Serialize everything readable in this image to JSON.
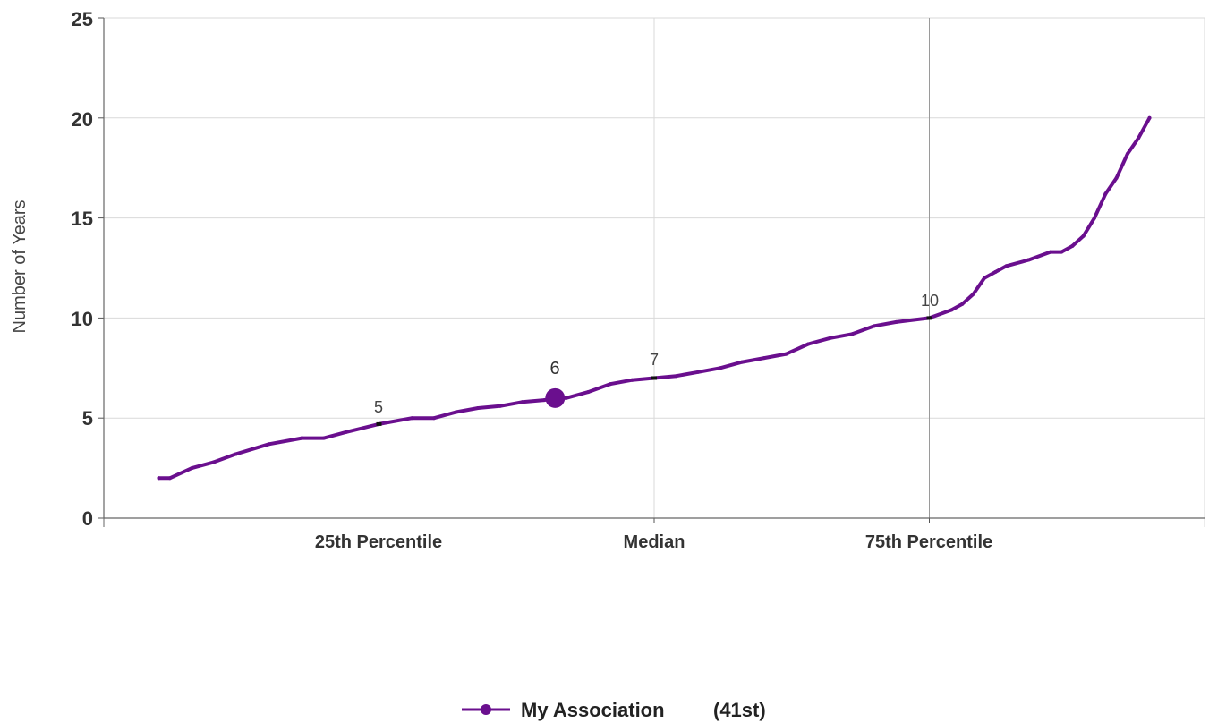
{
  "chart_data": {
    "type": "line",
    "ylabel": "Number of Years",
    "ylim": [
      0,
      25
    ],
    "yticks": [
      "0",
      "5",
      "10",
      "15",
      "20",
      "25"
    ],
    "x_categories": [
      "25th Percentile",
      "Median",
      "75th Percentile"
    ],
    "grid": true,
    "legend": {
      "label": "My Association",
      "rank": "(41st)",
      "placement": "bottom-center"
    },
    "series": [
      {
        "name": "My Association",
        "color": "#6a0f8e",
        "x_percentile": [
          5,
          6,
          8,
          10,
          12,
          15,
          18,
          20,
          22,
          25,
          28,
          30,
          32,
          34,
          36,
          38,
          40,
          41,
          42,
          44,
          46,
          48,
          50,
          52,
          54,
          56,
          58,
          60,
          62,
          64,
          66,
          68,
          70,
          72,
          75,
          77,
          78,
          79,
          80,
          81,
          82,
          84,
          86,
          87,
          88,
          89,
          90,
          91,
          92,
          93,
          94,
          95
        ],
        "y_years": [
          2.0,
          2.0,
          2.5,
          2.8,
          3.2,
          3.7,
          4.0,
          4.0,
          4.3,
          4.7,
          5.0,
          5.0,
          5.3,
          5.5,
          5.6,
          5.8,
          5.9,
          6.0,
          6.0,
          6.3,
          6.7,
          6.9,
          7.0,
          7.1,
          7.3,
          7.5,
          7.8,
          8.0,
          8.2,
          8.7,
          9.0,
          9.2,
          9.6,
          9.8,
          10.0,
          10.4,
          10.7,
          11.2,
          12.0,
          12.3,
          12.6,
          12.9,
          13.3,
          13.3,
          13.6,
          14.1,
          15.0,
          16.2,
          17.0,
          18.2,
          19.0,
          20.0
        ]
      }
    ],
    "annotations": [
      {
        "label": "5",
        "x_percentile": 25,
        "y": 4.7
      },
      {
        "label": "7",
        "x_percentile": 50,
        "y": 7.0
      },
      {
        "label": "10",
        "x_percentile": 75,
        "y": 10.0
      }
    ],
    "highlight": {
      "label": "6",
      "x_percentile": 41,
      "y": 6.0
    }
  }
}
